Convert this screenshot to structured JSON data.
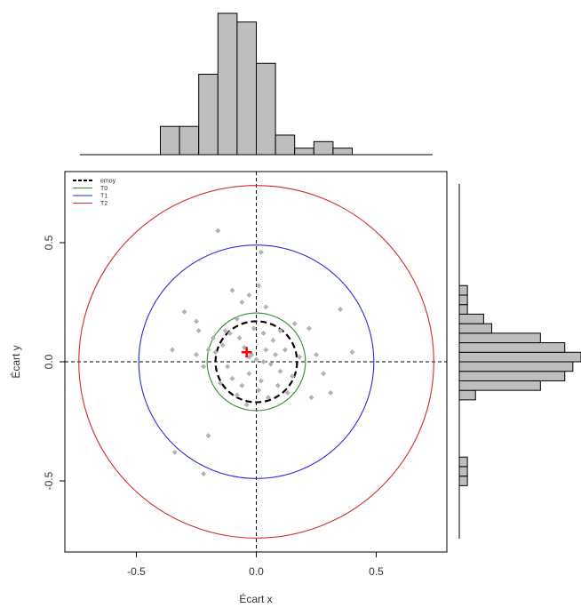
{
  "chart_data": [
    {
      "type": "scatter",
      "title": "",
      "xlabel": "Écart x",
      "ylabel": "Écart y",
      "xlim": [
        -0.8,
        0.8
      ],
      "ylim": [
        -0.8,
        0.8
      ],
      "x_ticks": [
        -0.5,
        0.0,
        0.5
      ],
      "x_tick_labels": [
        "-0.5",
        "0.0",
        "0.5"
      ],
      "y_ticks": [
        -0.5,
        0.0,
        0.5
      ],
      "y_tick_labels": [
        "-0.5",
        "0.0",
        "0.5"
      ],
      "reference_lines": {
        "x": 0,
        "y": 0,
        "style": "dashed"
      },
      "circles": [
        {
          "name": "emoy",
          "radius": 0.17,
          "color": "#000000",
          "style": "dashed",
          "stroke": "thick"
        },
        {
          "name": "T0",
          "radius": 0.205,
          "color": "#2e8b2e",
          "style": "solid"
        },
        {
          "name": "T1",
          "radius": 0.49,
          "color": "#2a2adb",
          "style": "solid"
        },
        {
          "name": "T2",
          "radius": 0.74,
          "color": "#d42a2a",
          "style": "solid"
        }
      ],
      "mean_point": {
        "x": -0.04,
        "y": 0.04,
        "color": "#ff0000",
        "marker": "plus"
      },
      "legend": {
        "placement": "top-left",
        "entries": [
          "emoy",
          "T0",
          "T1",
          "T2"
        ]
      },
      "points_color": "#b3b3b3",
      "points": [
        [
          -0.16,
          0.55
        ],
        [
          0.02,
          0.46
        ],
        [
          -0.1,
          0.3
        ],
        [
          -0.08,
          0.18
        ],
        [
          -0.06,
          0.25
        ],
        [
          -0.03,
          0.28
        ],
        [
          0.01,
          0.32
        ],
        [
          0.04,
          0.23
        ],
        [
          -0.13,
          0.13
        ],
        [
          -0.18,
          0.1
        ],
        [
          -0.2,
          0.05
        ],
        [
          -0.25,
          0.03
        ],
        [
          -0.22,
          -0.02
        ],
        [
          -0.17,
          0.04
        ],
        [
          -0.14,
          0.07
        ],
        [
          -0.11,
          0.12
        ],
        [
          -0.07,
          0.1
        ],
        [
          -0.05,
          0.06
        ],
        [
          -0.02,
          0.03
        ],
        [
          0.0,
          0.01
        ],
        [
          0.03,
          0.0
        ],
        [
          0.06,
          -0.01
        ],
        [
          0.08,
          0.03
        ],
        [
          0.1,
          -0.04
        ],
        [
          0.12,
          0.05
        ],
        [
          0.15,
          -0.06
        ],
        [
          0.18,
          0.02
        ],
        [
          0.02,
          -0.08
        ],
        [
          -0.03,
          -0.05
        ],
        [
          -0.06,
          -0.1
        ],
        [
          -0.1,
          -0.07
        ],
        [
          -0.12,
          -0.02
        ],
        [
          -0.15,
          -0.09
        ],
        [
          -0.08,
          -0.14
        ],
        [
          -0.04,
          -0.18
        ],
        [
          0.01,
          -0.12
        ],
        [
          0.05,
          -0.15
        ],
        [
          0.09,
          -0.1
        ],
        [
          0.13,
          -0.13
        ],
        [
          0.07,
          0.09
        ],
        [
          0.03,
          0.12
        ],
        [
          -0.01,
          0.14
        ],
        [
          0.1,
          0.13
        ],
        [
          0.16,
          0.16
        ],
        [
          -0.24,
          0.13
        ],
        [
          0.25,
          0.03
        ],
        [
          0.28,
          -0.05
        ],
        [
          0.35,
          0.22
        ],
        [
          0.4,
          0.04
        ],
        [
          0.31,
          -0.13
        ],
        [
          0.23,
          -0.15
        ],
        [
          0.22,
          0.14
        ],
        [
          -0.34,
          -0.38
        ],
        [
          -0.2,
          -0.31
        ],
        [
          -0.22,
          -0.47
        ],
        [
          -0.3,
          0.21
        ],
        [
          -0.35,
          0.05
        ],
        [
          -0.25,
          0.17
        ],
        [
          -0.03,
          0.02
        ],
        [
          0.04,
          0.05
        ]
      ]
    },
    {
      "type": "bar",
      "orientation": "vertical",
      "title": "",
      "bin_edges": [
        -0.4,
        -0.32,
        -0.24,
        -0.16,
        -0.08,
        0.0,
        0.08,
        0.16,
        0.24,
        0.32,
        0.4
      ],
      "values": [
        1.3,
        1.3,
        3.7,
        6.5,
        6.1,
        4.2,
        0.9,
        0.3,
        0.6,
        0.3
      ],
      "ylim": [
        0,
        6.5
      ],
      "color": "#bebebe"
    },
    {
      "type": "bar",
      "orientation": "horizontal",
      "title": "",
      "bin_edges": [
        -0.52,
        -0.48,
        -0.44,
        -0.4,
        -0.36,
        -0.32,
        -0.28,
        -0.24,
        -0.2,
        -0.16,
        -0.12,
        -0.08,
        -0.04,
        0.0,
        0.04,
        0.08,
        0.12,
        0.16,
        0.2,
        0.24,
        0.28,
        0.32,
        0.36,
        0.4,
        0.44,
        0.48,
        0.52
      ],
      "values": [
        1,
        1,
        1,
        0,
        0,
        0,
        0,
        0,
        0,
        2,
        10,
        13,
        14,
        15,
        13,
        10,
        4,
        3,
        1,
        1,
        1,
        0,
        0,
        0,
        0,
        0
      ],
      "ylim": [
        0,
        15
      ],
      "color": "#bebebe"
    }
  ]
}
